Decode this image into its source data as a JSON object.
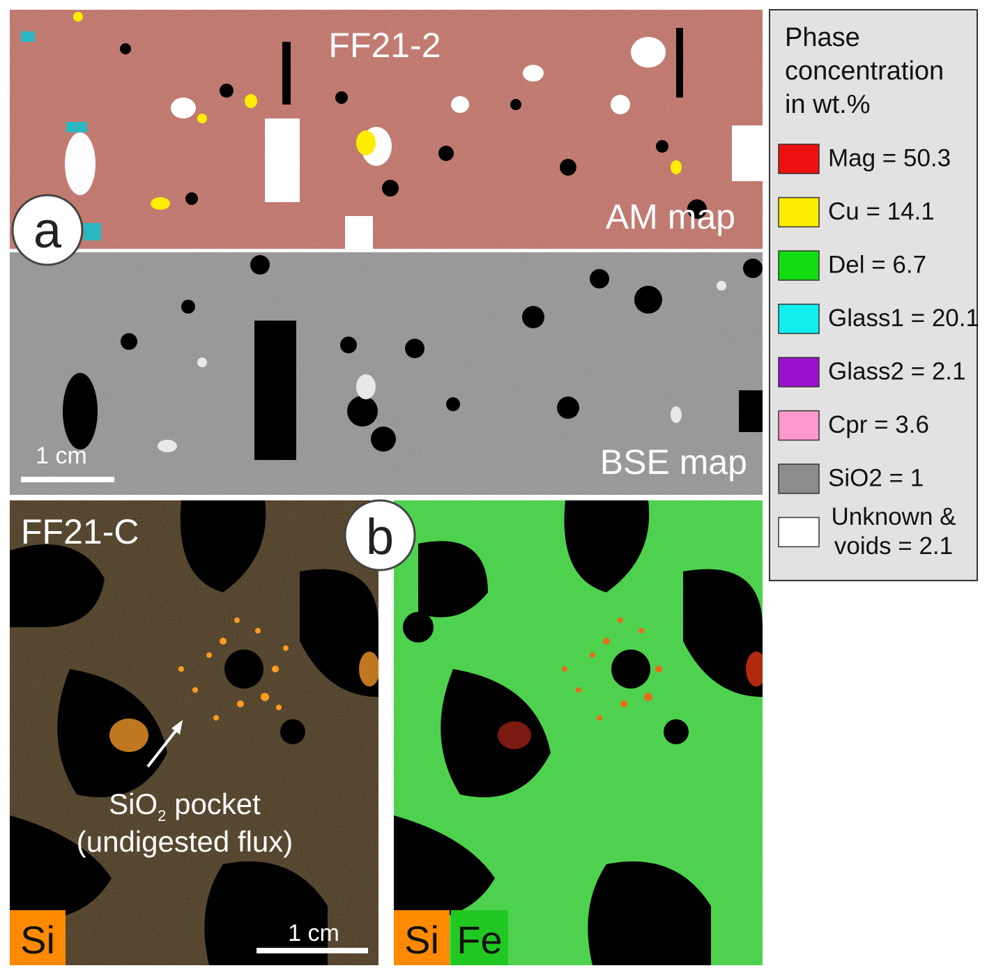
{
  "panel_a": {
    "label": "a",
    "am_map": {
      "sample": "FF21-2",
      "caption": "AM map"
    },
    "bse_map": {
      "caption": "BSE map",
      "scale_bar": "1 cm"
    }
  },
  "panel_b": {
    "label": "b",
    "sample": "FF21-C",
    "annotation": {
      "line1_main": "SiO",
      "line1_sub": "2",
      "line1_rest": " pocket",
      "line2": "(undigested flux)"
    },
    "scale_bar": "1 cm",
    "left_tag": "Si",
    "right_tags": [
      "Si",
      "Fe"
    ]
  },
  "legend": {
    "title_lines": [
      "Phase",
      "concentration",
      "in wt.%"
    ],
    "items": [
      {
        "label": "Mag = 50.3",
        "color": "#ee1111"
      },
      {
        "label": "Cu = 14.1",
        "color": "#ffee00"
      },
      {
        "label": "Del = 6.7",
        "color": "#11dd11"
      },
      {
        "label": "Glass1 = 20.1",
        "color": "#11eeee"
      },
      {
        "label": "Glass2 = 2.1",
        "color": "#9911cc"
      },
      {
        "label": "Cpr = 3.6",
        "color": "#ff99cc"
      },
      {
        "label": "SiO2 = 1",
        "color": "#8c8c8c"
      },
      {
        "label": [
          "Unknown &",
          "voids = 2.1"
        ],
        "color": "#ffffff"
      }
    ]
  }
}
